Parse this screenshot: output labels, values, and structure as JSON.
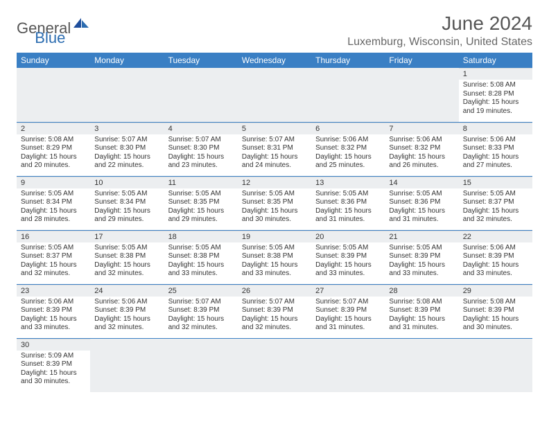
{
  "logo": {
    "general": "General",
    "blue": "Blue"
  },
  "title": "June 2024",
  "location": "Luxemburg, Wisconsin, United States",
  "colors": {
    "header_bg": "#3a7fc4",
    "header_fg": "#ffffff",
    "daybar_bg": "#eceef0",
    "border": "#3a7fc4",
    "text": "#333333",
    "title": "#555555"
  },
  "weekdays": [
    "Sunday",
    "Monday",
    "Tuesday",
    "Wednesday",
    "Thursday",
    "Friday",
    "Saturday"
  ],
  "weeks": [
    [
      null,
      null,
      null,
      null,
      null,
      null,
      {
        "n": "1",
        "sr": "5:08 AM",
        "ss": "8:28 PM",
        "dl": "15 hours and 19 minutes."
      }
    ],
    [
      {
        "n": "2",
        "sr": "5:08 AM",
        "ss": "8:29 PM",
        "dl": "15 hours and 20 minutes."
      },
      {
        "n": "3",
        "sr": "5:07 AM",
        "ss": "8:30 PM",
        "dl": "15 hours and 22 minutes."
      },
      {
        "n": "4",
        "sr": "5:07 AM",
        "ss": "8:30 PM",
        "dl": "15 hours and 23 minutes."
      },
      {
        "n": "5",
        "sr": "5:07 AM",
        "ss": "8:31 PM",
        "dl": "15 hours and 24 minutes."
      },
      {
        "n": "6",
        "sr": "5:06 AM",
        "ss": "8:32 PM",
        "dl": "15 hours and 25 minutes."
      },
      {
        "n": "7",
        "sr": "5:06 AM",
        "ss": "8:32 PM",
        "dl": "15 hours and 26 minutes."
      },
      {
        "n": "8",
        "sr": "5:06 AM",
        "ss": "8:33 PM",
        "dl": "15 hours and 27 minutes."
      }
    ],
    [
      {
        "n": "9",
        "sr": "5:05 AM",
        "ss": "8:34 PM",
        "dl": "15 hours and 28 minutes."
      },
      {
        "n": "10",
        "sr": "5:05 AM",
        "ss": "8:34 PM",
        "dl": "15 hours and 29 minutes."
      },
      {
        "n": "11",
        "sr": "5:05 AM",
        "ss": "8:35 PM",
        "dl": "15 hours and 29 minutes."
      },
      {
        "n": "12",
        "sr": "5:05 AM",
        "ss": "8:35 PM",
        "dl": "15 hours and 30 minutes."
      },
      {
        "n": "13",
        "sr": "5:05 AM",
        "ss": "8:36 PM",
        "dl": "15 hours and 31 minutes."
      },
      {
        "n": "14",
        "sr": "5:05 AM",
        "ss": "8:36 PM",
        "dl": "15 hours and 31 minutes."
      },
      {
        "n": "15",
        "sr": "5:05 AM",
        "ss": "8:37 PM",
        "dl": "15 hours and 32 minutes."
      }
    ],
    [
      {
        "n": "16",
        "sr": "5:05 AM",
        "ss": "8:37 PM",
        "dl": "15 hours and 32 minutes."
      },
      {
        "n": "17",
        "sr": "5:05 AM",
        "ss": "8:38 PM",
        "dl": "15 hours and 32 minutes."
      },
      {
        "n": "18",
        "sr": "5:05 AM",
        "ss": "8:38 PM",
        "dl": "15 hours and 33 minutes."
      },
      {
        "n": "19",
        "sr": "5:05 AM",
        "ss": "8:38 PM",
        "dl": "15 hours and 33 minutes."
      },
      {
        "n": "20",
        "sr": "5:05 AM",
        "ss": "8:39 PM",
        "dl": "15 hours and 33 minutes."
      },
      {
        "n": "21",
        "sr": "5:05 AM",
        "ss": "8:39 PM",
        "dl": "15 hours and 33 minutes."
      },
      {
        "n": "22",
        "sr": "5:06 AM",
        "ss": "8:39 PM",
        "dl": "15 hours and 33 minutes."
      }
    ],
    [
      {
        "n": "23",
        "sr": "5:06 AM",
        "ss": "8:39 PM",
        "dl": "15 hours and 33 minutes."
      },
      {
        "n": "24",
        "sr": "5:06 AM",
        "ss": "8:39 PM",
        "dl": "15 hours and 32 minutes."
      },
      {
        "n": "25",
        "sr": "5:07 AM",
        "ss": "8:39 PM",
        "dl": "15 hours and 32 minutes."
      },
      {
        "n": "26",
        "sr": "5:07 AM",
        "ss": "8:39 PM",
        "dl": "15 hours and 32 minutes."
      },
      {
        "n": "27",
        "sr": "5:07 AM",
        "ss": "8:39 PM",
        "dl": "15 hours and 31 minutes."
      },
      {
        "n": "28",
        "sr": "5:08 AM",
        "ss": "8:39 PM",
        "dl": "15 hours and 31 minutes."
      },
      {
        "n": "29",
        "sr": "5:08 AM",
        "ss": "8:39 PM",
        "dl": "15 hours and 30 minutes."
      }
    ],
    [
      {
        "n": "30",
        "sr": "5:09 AM",
        "ss": "8:39 PM",
        "dl": "15 hours and 30 minutes."
      },
      null,
      null,
      null,
      null,
      null,
      null
    ]
  ],
  "labels": {
    "sunrise": "Sunrise:",
    "sunset": "Sunset:",
    "daylight": "Daylight:"
  }
}
